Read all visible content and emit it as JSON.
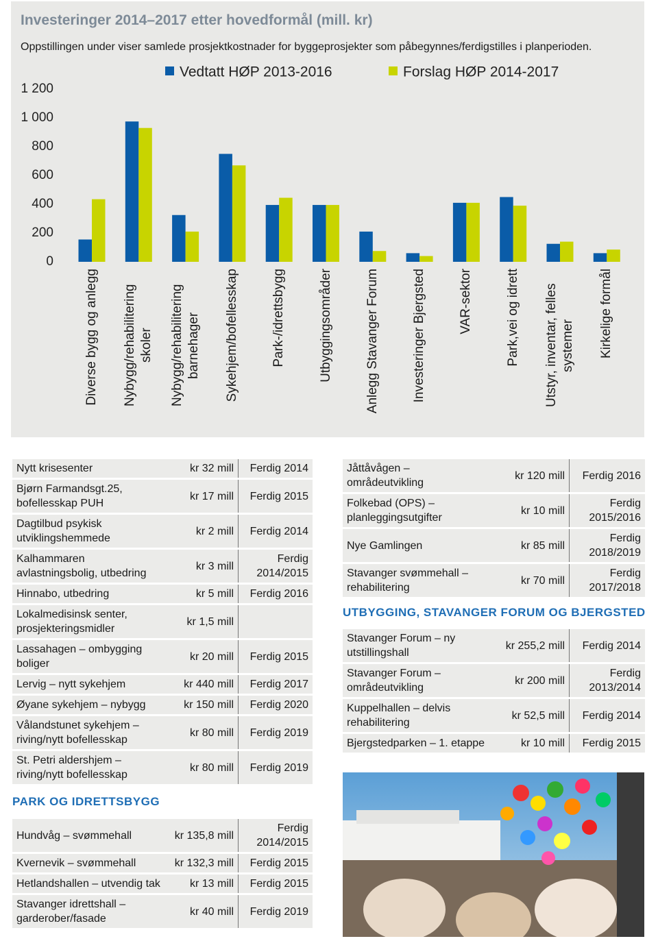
{
  "chart_data": {
    "type": "bar",
    "title": "Investeringer 2014–2017 etter hovedformål (mill. kr)",
    "subtitle": "Oppstillingen under viser samlede prosjektkostnader for byggeprosjekter som påbegynnes/ferdigstilles i planperioden.",
    "categories": [
      "Diverse bygg og anlegg",
      "Nybygg/rehabilitering skoler",
      "Nybygg/rehabilitering barnehager",
      "Sykehjem/bofellesskap",
      "Park-/idrettsbygg",
      "Utbyggingsområder",
      "Anlegg Stavanger Forum",
      "Investeringer Bjergsted",
      "VAR-sektor",
      "Park,vei og idrett",
      "Utstyr, inventar, felles systemer",
      "Kirkelige formål"
    ],
    "series": [
      {
        "name": "Vedtatt HØP 2013-2016",
        "color": "#0a5ca8",
        "values": [
          155,
          975,
          325,
          750,
          395,
          395,
          210,
          60,
          410,
          450,
          125,
          60
        ]
      },
      {
        "name": "Forslag HØP 2014-2017",
        "color": "#c8d400",
        "values": [
          435,
          930,
          210,
          670,
          445,
          395,
          75,
          40,
          410,
          390,
          140,
          85
        ]
      }
    ],
    "ylim": [
      0,
      1200
    ],
    "yticks": [
      0,
      200,
      400,
      600,
      800,
      {
        "value": 1000,
        "label": "1 000"
      },
      {
        "value": 1200,
        "label": "1 200"
      }
    ],
    "grid": false
  },
  "left_table": {
    "rows": [
      [
        "Nytt krisesenter",
        "kr 32 mill",
        "Ferdig 2014"
      ],
      [
        "Bjørn Farmandsgt.25, bofellesskap PUH",
        "kr 17 mill",
        "Ferdig 2015"
      ],
      [
        "Dagtilbud psykisk utviklingshemmede",
        "kr 2 mill",
        "Ferdig 2014"
      ],
      [
        "Kalhammaren avlastningsbolig, utbedring",
        "kr 3 mill",
        "Ferdig 2014/2015"
      ],
      [
        "Hinnabo, utbedring",
        "kr 5 mill",
        "Ferdig 2016"
      ],
      [
        "Lokalmedisinsk senter, prosjekteringsmidler",
        "kr 1,5 mill",
        null
      ],
      [
        "Lassahagen – ombygging boliger",
        "kr 20 mill",
        "Ferdig 2015"
      ],
      [
        "Lervig – nytt sykehjem",
        "kr 440 mill",
        "Ferdig 2017"
      ],
      [
        "Øyane sykehjem – nybygg",
        "kr 150 mill",
        "Ferdig 2020"
      ],
      [
        "Vålandstunet sykehjem – riving/nytt bofellesskap",
        "kr 80 mill",
        "Ferdig 2019"
      ],
      [
        "St. Petri aldershjem – riving/nytt bofellesskap",
        "kr 80 mill",
        "Ferdig 2019"
      ]
    ]
  },
  "park_section": {
    "heading": "PARK OG IDRETTSBYGG",
    "rows": [
      [
        "Hundvåg – svømmehall",
        "kr 135,8 mill",
        "Ferdig 2014/2015"
      ],
      [
        "Kvernevik – svømmehall",
        "kr 132,3 mill",
        "Ferdig 2015"
      ],
      [
        "Hetlandshallen – utvendig tak",
        "kr 13 mill",
        "Ferdig 2015"
      ],
      [
        "Stavanger idrettshall – garderober/fasade",
        "kr 40 mill",
        "Ferdig 2019"
      ]
    ]
  },
  "right_table": {
    "rows": [
      [
        "Jåttåvågen – områdeutvikling",
        "kr 120 mill",
        "Ferdig 2016"
      ],
      [
        "Folkebad (OPS) – planleggingsutgifter",
        "kr 10 mill",
        "Ferdig 2015/2016"
      ],
      [
        "Nye Gamlingen",
        "kr 85 mill",
        "Ferdig 2018/2019"
      ],
      [
        "Stavanger svømmehall – rehabilitering",
        "kr 70 mill",
        "Ferdig 2017/2018"
      ]
    ]
  },
  "forum_section": {
    "heading": "UTBYGGING, STAVANGER FORUM OG BJERGSTED",
    "rows": [
      [
        "Stavanger Forum – ny utstillingshall",
        "kr 255,2 mill",
        "Ferdig 2014"
      ],
      [
        "Stavanger Forum – områdeutvikling",
        "kr 200 mill",
        "Ferdig 2013/2014"
      ],
      [
        "Kuppelhallen – delvis rehabilitering",
        "kr 52,5 mill",
        "Ferdig 2014"
      ],
      [
        "Bjergstedparken – 1. etappe",
        "kr 10 mill",
        "Ferdig 2015"
      ]
    ]
  }
}
